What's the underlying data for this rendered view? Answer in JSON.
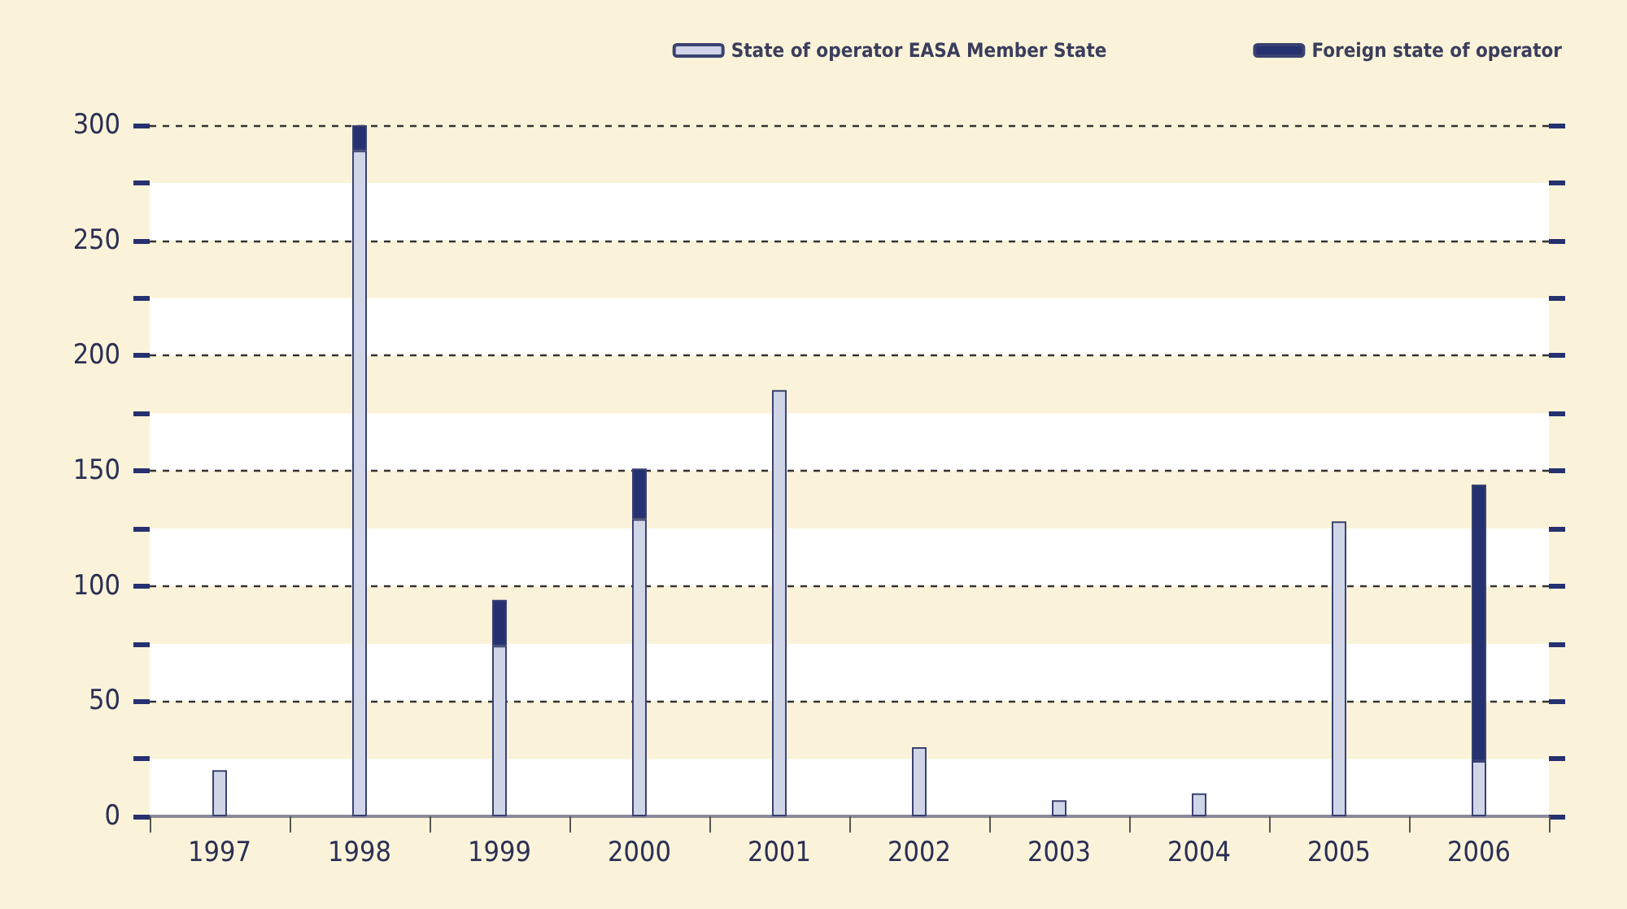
{
  "chart_data": {
    "type": "bar",
    "stacked": true,
    "categories": [
      "1997",
      "1998",
      "1999",
      "2000",
      "2001",
      "2002",
      "2003",
      "2004",
      "2005",
      "2006"
    ],
    "series": [
      {
        "name": "State of operator EASA Member State",
        "color": "#d0d5e8",
        "values": [
          20,
          289,
          74,
          129,
          185,
          30,
          7,
          10,
          128,
          24
        ]
      },
      {
        "name": "Foreign state of operator",
        "color": "#253170",
        "values": [
          0,
          11,
          20,
          22,
          0,
          0,
          0,
          0,
          0,
          120
        ]
      }
    ],
    "ylim": [
      0,
      300
    ],
    "yticks": [
      0,
      {
        "value": 25,
        "label": null
      },
      50,
      {
        "value": 75,
        "label": null
      },
      100,
      {
        "value": 125,
        "label": null
      },
      150,
      {
        "value": 175,
        "label": null
      },
      200,
      {
        "value": 225,
        "label": null
      },
      250,
      {
        "value": 275,
        "label": null
      },
      300
    ],
    "grid": "y",
    "legend": "top right"
  }
}
